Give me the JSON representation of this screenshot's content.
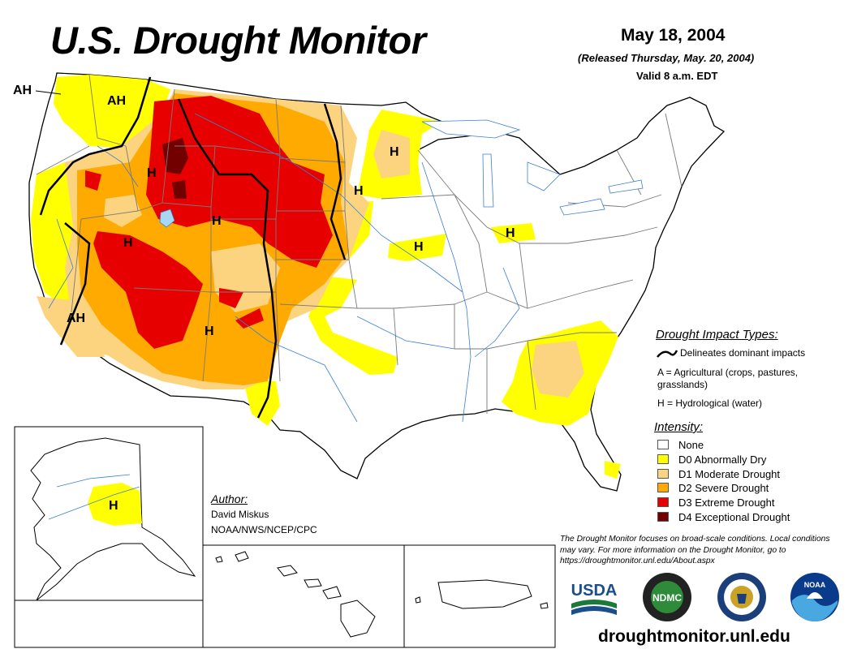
{
  "header": {
    "title": "U.S. Drought Monitor",
    "date": "May 18, 2004",
    "released": "(Released Thursday, May. 20, 2004)",
    "valid": "Valid 8 a.m. EDT"
  },
  "map_labels": {
    "ah_outside": "AH",
    "ah_pacific_nw": "AH",
    "ah_southern_ca": "AH",
    "h_idaho": "H",
    "h_utah": "H",
    "h_nevada": "H",
    "h_arizona_nm": "H",
    "h_minnesota": "H",
    "h_iowa": "H",
    "h_illinois": "H",
    "h_ohio": "H",
    "h_alaska": "H"
  },
  "impact_legend": {
    "title": "Drought Impact Types:",
    "delineates": "Delineates dominant impacts",
    "agricultural": "A = Agricultural (crops, pastures,",
    "agricultural_cont": "grasslands)",
    "hydrological": "H = Hydrological (water)"
  },
  "intensity_legend": {
    "title": "Intensity:",
    "items": [
      {
        "label": "None",
        "color": "#ffffff"
      },
      {
        "label": "D0 Abnormally Dry",
        "color": "#ffff00"
      },
      {
        "label": "D1 Moderate Drought",
        "color": "#fcd37f"
      },
      {
        "label": "D2 Severe Drought",
        "color": "#ffaa00"
      },
      {
        "label": "D3 Extreme Drought",
        "color": "#e60000"
      },
      {
        "label": "D4 Exceptional Drought",
        "color": "#730000"
      }
    ]
  },
  "author": {
    "title": "Author:",
    "name": "David Miskus",
    "org": "NOAA/NWS/NCEP/CPC"
  },
  "disclaimer": "The Drought Monitor focuses on broad-scale conditions. Local conditions may vary. For more information on the Drought Monitor, go to https://droughtmonitor.unl.edu/About.aspx",
  "logos": {
    "usda": "USDA",
    "ndmc": "NDMC",
    "noaa": "NOAA"
  },
  "footer_url": "droughtmonitor.unl.edu",
  "colors": {
    "d0": "#ffff00",
    "d1": "#fcd37f",
    "d2": "#ffaa00",
    "d3": "#e60000",
    "d4": "#730000",
    "water": "#a8d8f0",
    "river": "#3a7fd5",
    "border": "#7a7a7a"
  }
}
